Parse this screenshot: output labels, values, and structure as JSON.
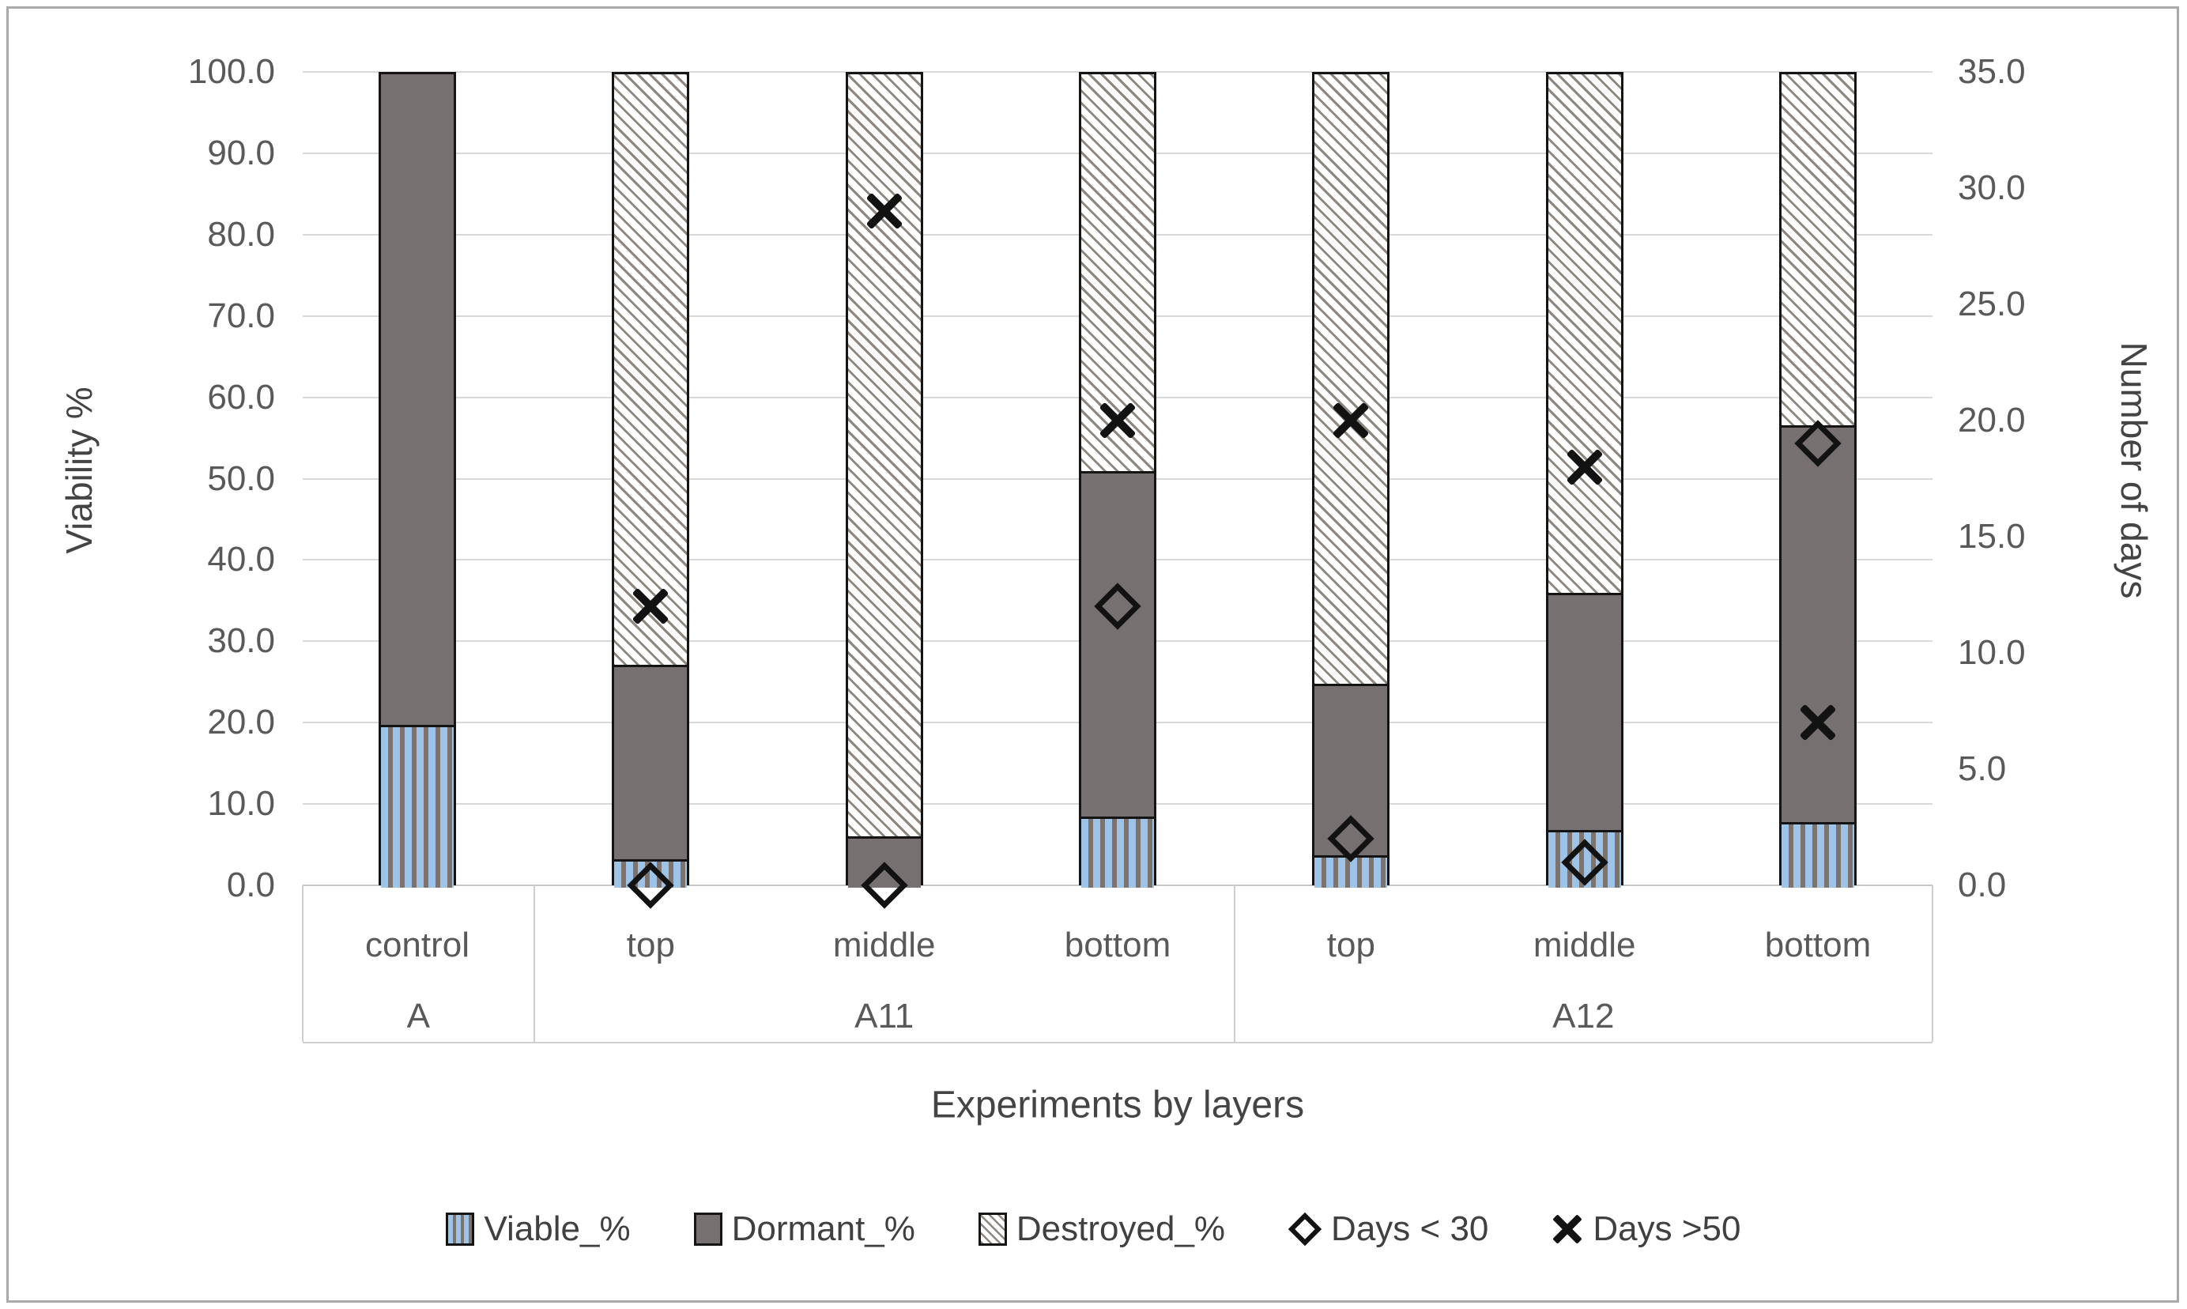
{
  "chart_data": {
    "type": "bar",
    "subtype": "stacked-percentage-with-scatter-markers",
    "x_axis": {
      "title": "Experiments by layers",
      "groups": [
        {
          "label": "A",
          "categories": [
            "control"
          ]
        },
        {
          "label": "A11",
          "categories": [
            "top",
            "middle",
            "bottom"
          ]
        },
        {
          "label": "A12",
          "categories": [
            "top",
            "middle",
            "bottom"
          ]
        }
      ]
    },
    "left_axis": {
      "title": "Viability %",
      "min": 0,
      "max": 100,
      "step": 10,
      "tick_labels": [
        "0.0",
        "10.0",
        "20.0",
        "30.0",
        "40.0",
        "50.0",
        "60.0",
        "70.0",
        "80.0",
        "90.0",
        "100.0"
      ]
    },
    "right_axis": {
      "title": "Number of days",
      "min": 0,
      "max": 35,
      "step": 5,
      "tick_labels": [
        "0.0",
        "5.0",
        "10.0",
        "15.0",
        "20.0",
        "25.0",
        "30.0",
        "35.0"
      ]
    },
    "grid": "horizontal-on",
    "legend_position": "bottom",
    "bars": [
      {
        "group": "A",
        "layer": "control",
        "viable": 19.7,
        "dormant": 80.3,
        "destroyed": 0.0,
        "days_lt_30": null,
        "days_gt_50": null
      },
      {
        "group": "A11",
        "layer": "top",
        "viable": 3.2,
        "dormant": 23.9,
        "destroyed": 72.9,
        "days_lt_30": 0,
        "days_gt_50": 12
      },
      {
        "group": "A11",
        "layer": "middle",
        "viable": 0.0,
        "dormant": 6.0,
        "destroyed": 94.0,
        "days_lt_30": 0,
        "days_gt_50": 29
      },
      {
        "group": "A11",
        "layer": "bottom",
        "viable": 8.5,
        "dormant": 42.4,
        "destroyed": 49.1,
        "days_lt_30": 12,
        "days_gt_50": 20
      },
      {
        "group": "A12",
        "layer": "top",
        "viable": 3.7,
        "dormant": 21.1,
        "destroyed": 75.2,
        "days_lt_30": 2,
        "days_gt_50": 20
      },
      {
        "group": "A12",
        "layer": "middle",
        "viable": 6.8,
        "dormant": 29.2,
        "destroyed": 64.0,
        "days_lt_30": 1,
        "days_gt_50": 18
      },
      {
        "group": "A12",
        "layer": "bottom",
        "viable": 7.8,
        "dormant": 48.8,
        "destroyed": 43.4,
        "days_lt_30": 19,
        "days_gt_50": 7
      }
    ],
    "legend": [
      {
        "label": "Viable_%",
        "swatch": "viable-pattern"
      },
      {
        "label": "Dormant_%",
        "swatch": "dormant-fill"
      },
      {
        "label": "Destroyed_%",
        "swatch": "destroyed-pattern"
      },
      {
        "label": "Days < 30",
        "swatch": "diamond-marker"
      },
      {
        "label": "Days >50",
        "swatch": "x-marker"
      }
    ],
    "colors": {
      "viable_blue": "#9dc3e6",
      "viable_stripe_gray": "#7d736c",
      "dormant_gray": "#767170",
      "destroyed_hatch_gray": "#8d8780",
      "marker_black": "#121212",
      "gridline_gray": "#d9d9d9",
      "axis_text_gray": "#595959",
      "category_box_border": "#d0cece",
      "frame_border": "#aaaaaa"
    }
  }
}
